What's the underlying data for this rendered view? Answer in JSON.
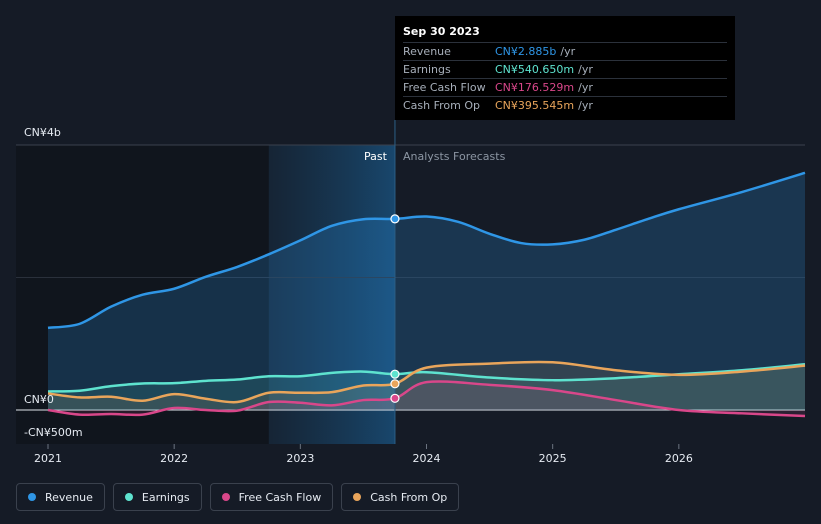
{
  "chart_data": {
    "type": "line",
    "y_axis_labels": [
      "CN¥4b",
      "CN¥0",
      "-CN¥500m"
    ],
    "x_tick_labels": [
      "2021",
      "2022",
      "2023",
      "2024",
      "2025",
      "2026"
    ],
    "ylim": [
      -500,
      4000
    ],
    "xlim": [
      2020.9,
      2027.0
    ],
    "past_label": "Past",
    "forecast_label": "Analysts Forecasts",
    "past_end": 2023.75,
    "highlight_start": 2022.75,
    "series": [
      {
        "name": "Revenue",
        "color": "#2f96e6",
        "values": [
          [
            2021.0,
            1240
          ],
          [
            2021.25,
            1300
          ],
          [
            2021.5,
            1560
          ],
          [
            2021.75,
            1740
          ],
          [
            2022.0,
            1830
          ],
          [
            2022.25,
            2010
          ],
          [
            2022.5,
            2160
          ],
          [
            2022.75,
            2350
          ],
          [
            2023.0,
            2560
          ],
          [
            2023.25,
            2780
          ],
          [
            2023.5,
            2880
          ],
          [
            2023.75,
            2885
          ],
          [
            2024.0,
            2920
          ],
          [
            2024.25,
            2840
          ],
          [
            2024.5,
            2660
          ],
          [
            2024.75,
            2520
          ],
          [
            2025.0,
            2500
          ],
          [
            2025.25,
            2570
          ],
          [
            2025.5,
            2720
          ],
          [
            2025.75,
            2880
          ],
          [
            2026.0,
            3030
          ],
          [
            2026.5,
            3290
          ],
          [
            2027.0,
            3580
          ]
        ]
      },
      {
        "name": "Earnings",
        "color": "#5ee3cf",
        "values": [
          [
            2021.0,
            280
          ],
          [
            2021.25,
            290
          ],
          [
            2021.5,
            360
          ],
          [
            2021.75,
            400
          ],
          [
            2022.0,
            405
          ],
          [
            2022.25,
            440
          ],
          [
            2022.5,
            460
          ],
          [
            2022.75,
            510
          ],
          [
            2023.0,
            510
          ],
          [
            2023.25,
            560
          ],
          [
            2023.5,
            580
          ],
          [
            2023.75,
            540.65
          ],
          [
            2024.0,
            570
          ],
          [
            2024.5,
            490
          ],
          [
            2025.0,
            450
          ],
          [
            2025.5,
            480
          ],
          [
            2026.0,
            540
          ],
          [
            2026.5,
            600
          ],
          [
            2027.0,
            690
          ]
        ]
      },
      {
        "name": "Free Cash Flow",
        "color": "#d9478a",
        "values": [
          [
            2021.0,
            0
          ],
          [
            2021.25,
            -70
          ],
          [
            2021.5,
            -60
          ],
          [
            2021.75,
            -70
          ],
          [
            2022.0,
            30
          ],
          [
            2022.25,
            0
          ],
          [
            2022.5,
            -10
          ],
          [
            2022.75,
            120
          ],
          [
            2023.0,
            110
          ],
          [
            2023.25,
            70
          ],
          [
            2023.5,
            150
          ],
          [
            2023.75,
            176.529
          ],
          [
            2024.0,
            420
          ],
          [
            2024.5,
            380
          ],
          [
            2025.0,
            300
          ],
          [
            2025.5,
            150
          ],
          [
            2026.0,
            0
          ],
          [
            2026.5,
            -50
          ],
          [
            2027.0,
            -90
          ]
        ]
      },
      {
        "name": "Cash From Op",
        "color": "#e9a55b",
        "values": [
          [
            2021.0,
            250
          ],
          [
            2021.25,
            190
          ],
          [
            2021.5,
            200
          ],
          [
            2021.75,
            140
          ],
          [
            2022.0,
            240
          ],
          [
            2022.25,
            170
          ],
          [
            2022.5,
            120
          ],
          [
            2022.75,
            260
          ],
          [
            2023.0,
            260
          ],
          [
            2023.25,
            270
          ],
          [
            2023.5,
            370
          ],
          [
            2023.75,
            395.545
          ],
          [
            2024.0,
            640
          ],
          [
            2024.5,
            700
          ],
          [
            2025.0,
            720
          ],
          [
            2025.5,
            600
          ],
          [
            2026.0,
            530
          ],
          [
            2026.5,
            580
          ],
          [
            2027.0,
            670
          ]
        ]
      }
    ],
    "marker_x": 2023.75
  },
  "tooltip": {
    "date": "Sep 30 2023",
    "rows": [
      {
        "name": "Revenue",
        "value": "CN¥2.885b",
        "unit": "/yr",
        "color": "#2f96e6"
      },
      {
        "name": "Earnings",
        "value": "CN¥540.650m",
        "unit": "/yr",
        "color": "#5ee3cf"
      },
      {
        "name": "Free Cash Flow",
        "value": "CN¥176.529m",
        "unit": "/yr",
        "color": "#d9478a"
      },
      {
        "name": "Cash From Op",
        "value": "CN¥395.545m",
        "unit": "/yr",
        "color": "#e9a55b"
      }
    ]
  },
  "legend": [
    {
      "label": "Revenue",
      "color": "#2f96e6"
    },
    {
      "label": "Earnings",
      "color": "#5ee3cf"
    },
    {
      "label": "Free Cash Flow",
      "color": "#d9478a"
    },
    {
      "label": "Cash From Op",
      "color": "#e9a55b"
    }
  ]
}
